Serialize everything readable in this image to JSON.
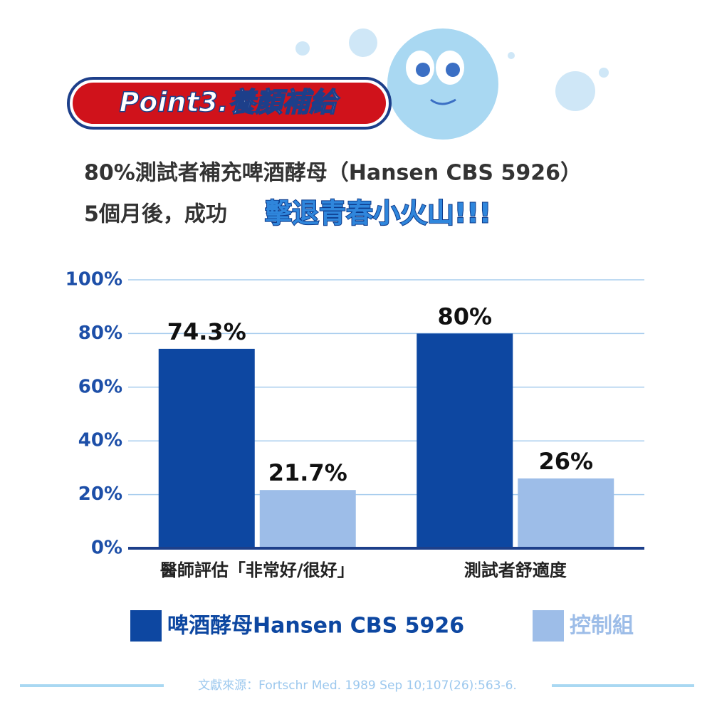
{
  "chart_data": {
    "type": "bar",
    "title": "Point3.養顏補給",
    "subtitle": [
      "80%測試者補充啤酒酵母（Hansen CBS 5926）",
      "5個月後，成功"
    ],
    "highlight": "擊退青春小火山!!!",
    "source": "文獻來源：Fortschr Med. 1989 Sep 10;107(26):563-6.",
    "categories": [
      "醫師評估「非常好/很好」",
      "測試者舒適度"
    ],
    "series": [
      {
        "name": "啤酒酵母Hansen CBS 5926",
        "color": "#0d47a1",
        "values": [
          74.3,
          80
        ],
        "value_labels": [
          "74.3%",
          "80%"
        ]
      },
      {
        "name": "控制組",
        "color": "#9dbde8",
        "values": [
          21.7,
          26
        ],
        "value_labels": [
          "21.7%",
          "26%"
        ]
      }
    ],
    "ylim": [
      0,
      100
    ],
    "yticks": [
      {
        "value": 0,
        "label": "0%"
      },
      {
        "value": 20,
        "label": "20%"
      },
      {
        "value": 40,
        "label": "40%"
      },
      {
        "value": 60,
        "label": "60%"
      },
      {
        "value": 80,
        "label": "80%"
      },
      {
        "value": 100,
        "label": "100%"
      }
    ],
    "grid": true
  }
}
